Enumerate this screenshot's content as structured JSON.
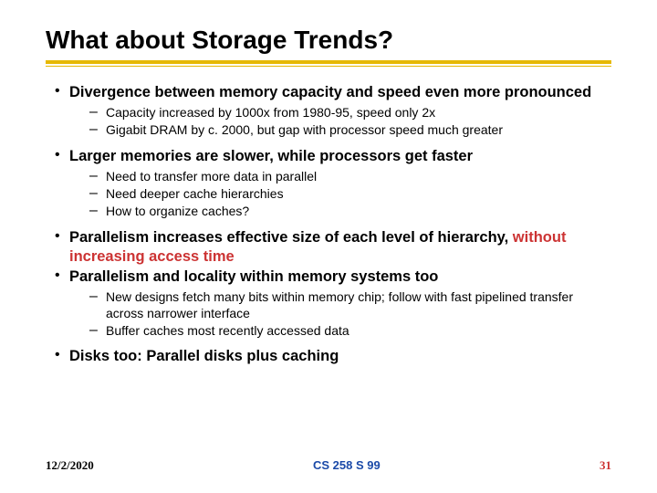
{
  "title": "What about Storage Trends?",
  "colors": {
    "rule": "#e6b800",
    "highlight": "#cc3333",
    "footer_center": "#1b4aa8",
    "footer_page": "#cc3333",
    "text": "#000000",
    "background": "#ffffff"
  },
  "bullets": [
    {
      "text": "Divergence between memory capacity and speed even more pronounced",
      "subs": [
        "Capacity increased by 1000x from 1980-95, speed only 2x",
        "Gigabit DRAM by c. 2000, but gap with processor speed much greater"
      ]
    },
    {
      "text": "Larger memories are slower, while processors get faster",
      "subs": [
        "Need to transfer more data in parallel",
        "Need deeper cache hierarchies",
        "How to organize caches?"
      ]
    },
    {
      "text_pre": "Parallelism increases effective size of each level of hierarchy, ",
      "text_highlight": "without increasing access time",
      "subs": []
    },
    {
      "text": "Parallelism and locality within memory systems too",
      "subs": [
        "New designs fetch many bits within memory chip; follow with fast pipelined transfer across narrower interface",
        "Buffer caches most recently accessed data"
      ]
    },
    {
      "text": "Disks too: Parallel disks plus caching",
      "subs": []
    }
  ],
  "footer": {
    "date": "12/2/2020",
    "center": "CS 258 S 99",
    "page": "31"
  }
}
